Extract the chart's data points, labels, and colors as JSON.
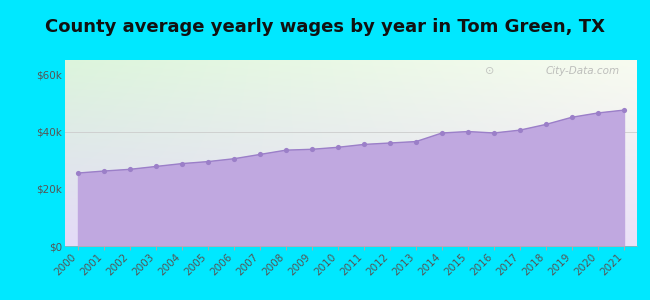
{
  "title": "County average yearly wages by year in Tom Green, TX",
  "years": [
    2000,
    2001,
    2002,
    2003,
    2004,
    2005,
    2006,
    2007,
    2008,
    2009,
    2010,
    2011,
    2012,
    2013,
    2014,
    2015,
    2016,
    2017,
    2018,
    2019,
    2020,
    2021
  ],
  "wages": [
    25500,
    26200,
    26800,
    27800,
    28800,
    29500,
    30500,
    32000,
    33500,
    33800,
    34500,
    35500,
    36000,
    36500,
    39500,
    40000,
    39500,
    40500,
    42500,
    45000,
    46500,
    47500
  ],
  "yticks": [
    0,
    20000,
    40000,
    60000
  ],
  "ylabels": [
    "$0",
    "$20k",
    "$40k",
    "$60k"
  ],
  "ylim": [
    0,
    65000
  ],
  "line_color": "#9b7fc8",
  "fill_color": "#c0a8e0",
  "marker_color": "#9b7fc8",
  "bg_outer": "#00e8ff",
  "bg_grad_topleft": [
    220,
    245,
    220
  ],
  "bg_grad_botright": [
    235,
    225,
    248
  ],
  "title_fontsize": 13,
  "tick_fontsize": 7.5,
  "watermark": "City-Data.com",
  "grid_color": "#cccccc"
}
